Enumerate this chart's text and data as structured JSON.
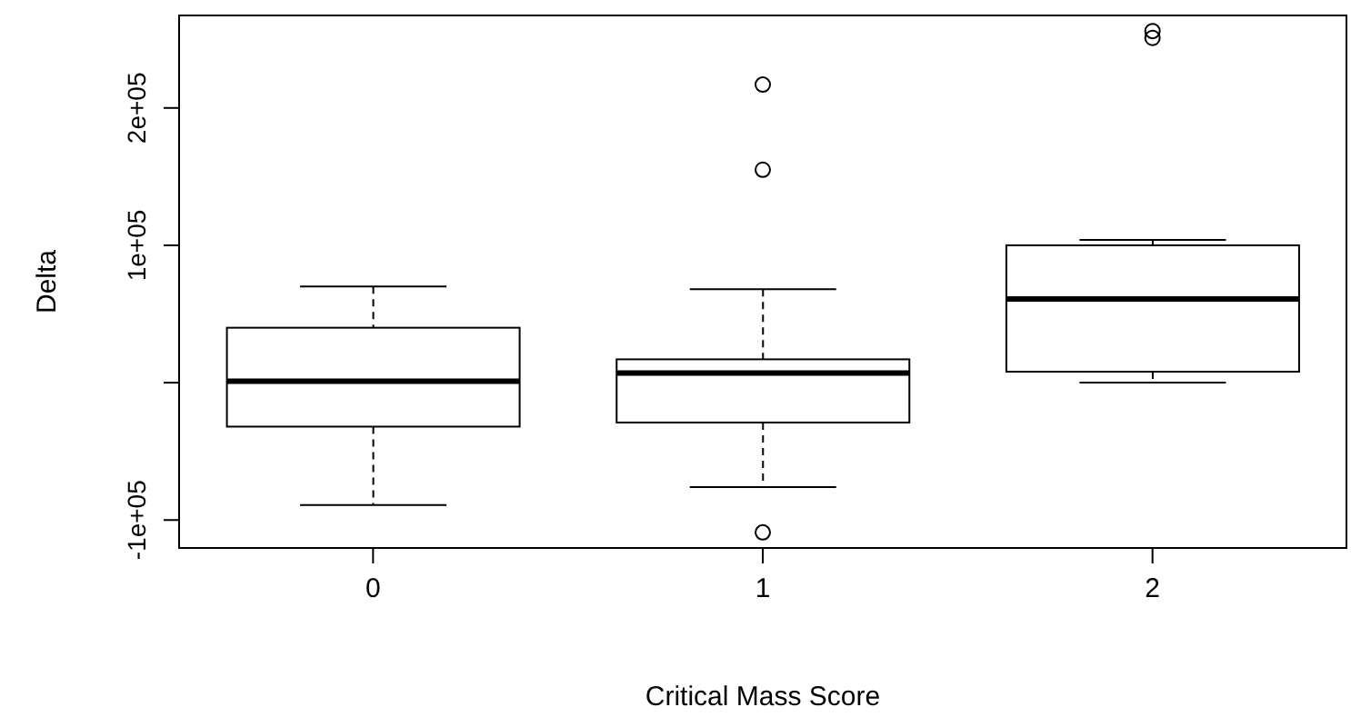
{
  "chart_data": {
    "type": "box",
    "xlabel": "Critical Mass Score",
    "ylabel": "Delta",
    "categories": [
      "0",
      "1",
      "2"
    ],
    "boxes": [
      {
        "low": -89000,
        "q1": -32000,
        "median": 1000,
        "q3": 40000,
        "high": 70000
      },
      {
        "low": -76000,
        "q1": -29000,
        "median": 7000,
        "q3": 17000,
        "high": 68000,
        "outliers": [
          217000,
          155000,
          -109000
        ]
      },
      {
        "low": 0,
        "q1": 8000,
        "median": 61000,
        "q3": 100000,
        "high": 104000,
        "outliers": [
          256000,
          251000
        ]
      }
    ],
    "ylim": [
      -121000,
      268000
    ],
    "yticks": [
      {
        "value": -100000,
        "label": "-1e+05"
      },
      {
        "value": 0,
        "label": null
      },
      {
        "value": 100000,
        "label": "1e+05"
      },
      {
        "value": 200000,
        "label": "2e+05"
      }
    ],
    "grid": false
  }
}
